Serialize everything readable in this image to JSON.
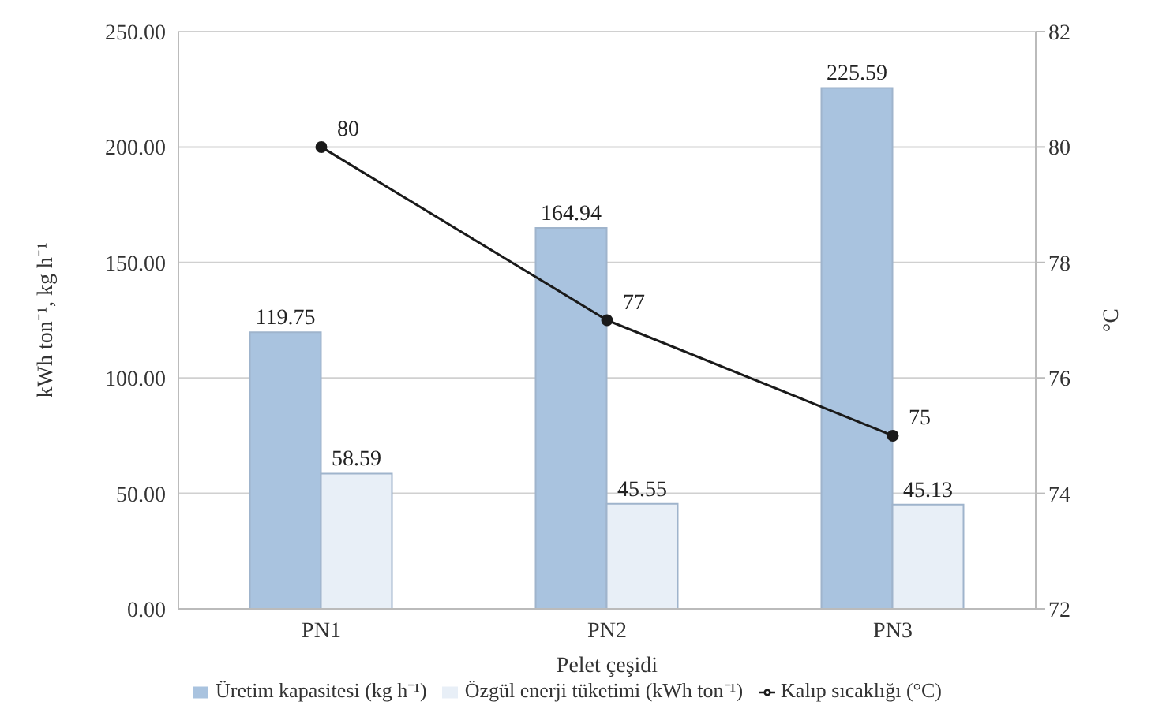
{
  "chart_data": {
    "type": "bar",
    "xlabel": "Pelet çeşidi",
    "ylabel": "kWh ton⁻¹, kg h⁻¹",
    "y2label": "°C",
    "categories": [
      "PN1",
      "PN2",
      "PN3"
    ],
    "series": [
      {
        "name": "Üretim kapasitesi (kg h⁻¹)",
        "color": "#a9c3df",
        "values": [
          119.75,
          164.94,
          225.59
        ]
      },
      {
        "name": "Özgül enerji tüketimi (kWh ton⁻¹)",
        "color": "#e8eff7",
        "values": [
          58.59,
          45.55,
          45.13
        ]
      },
      {
        "name": "Kalıp sıcaklığı (°C)",
        "type": "line",
        "axis": "y2",
        "color": "#1a1a1a",
        "values": [
          80,
          77,
          75
        ]
      }
    ],
    "ylim": [
      0,
      250
    ],
    "yticks": [
      {
        "value": 0,
        "label": "0.00"
      },
      {
        "value": 50,
        "label": "50.00"
      },
      {
        "value": 100,
        "label": "100.00"
      },
      {
        "value": 150,
        "label": "150.00"
      },
      {
        "value": 200,
        "label": "200.00"
      },
      {
        "value": 250,
        "label": "250.00"
      }
    ],
    "y2lim": [
      72,
      82
    ],
    "y2ticks": [
      72,
      74,
      76,
      78,
      80,
      82
    ],
    "grid": "y",
    "legend": "bottom",
    "marker": "circle",
    "data_labels": true
  }
}
